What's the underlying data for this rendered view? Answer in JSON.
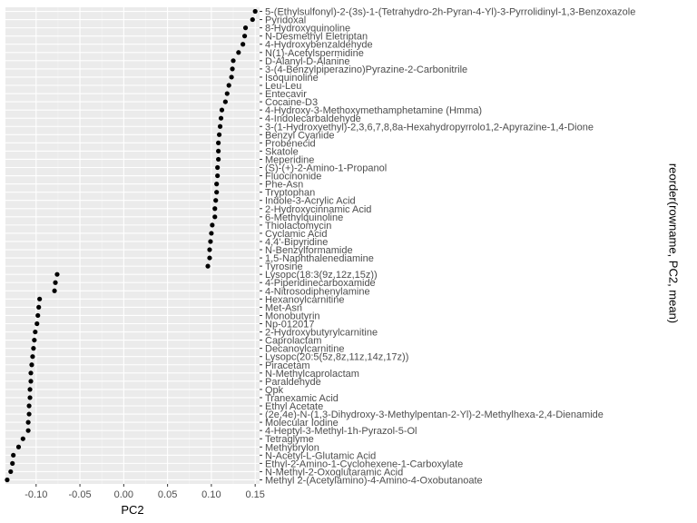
{
  "chart_data": {
    "type": "scatter",
    "xlabel": "PC2",
    "ylabel": "reorder(rowname, PC2, mean)",
    "xlim": [
      -0.135,
      0.155
    ],
    "x_ticks": [
      "-0.10",
      "-0.05",
      "0.00",
      "0.05",
      "0.10",
      "0.15"
    ],
    "x_tick_values": [
      -0.1,
      -0.05,
      0.0,
      0.05,
      0.1,
      0.15
    ],
    "grid": true,
    "legend": "none",
    "colors": {
      "panel": "#ebebeb",
      "grid_major": "#ffffff",
      "point": "#000000",
      "tick_text": "#4d4d4d"
    },
    "points": [
      {
        "label": "5-(Ethylsulfonyl)-2-(3s)-1-(Tetrahydro-2h-Pyran-4-Yl)-3-Pyrrolidinyl-1,3-Benzoxazole",
        "x": 0.15
      },
      {
        "label": "Pyridoxal",
        "x": 0.147
      },
      {
        "label": "8-Hydroxyquinoline",
        "x": 0.139
      },
      {
        "label": "N-Desmethyl Eletriptan",
        "x": 0.138
      },
      {
        "label": "4-Hydroxybenzaldehyde",
        "x": 0.136
      },
      {
        "label": "N(1)-Acetylspermidine",
        "x": 0.131
      },
      {
        "label": "D-Alanyl-D-Alanine",
        "x": 0.125
      },
      {
        "label": "3-(4-Benzylpiperazino)Pyrazine-2-Carbonitrile",
        "x": 0.124
      },
      {
        "label": "Isoquinoline",
        "x": 0.123
      },
      {
        "label": "Leu-Leu",
        "x": 0.12
      },
      {
        "label": "Entecavir",
        "x": 0.118
      },
      {
        "label": "Cocaine-D3",
        "x": 0.116
      },
      {
        "label": "4-Hydroxy-3-Methoxymethamphetamine (Hmma)",
        "x": 0.112
      },
      {
        "label": "4-Indolecarbaldehyde",
        "x": 0.111
      },
      {
        "label": "3-(1-Hydroxyethyl)-2,3,6,7,8,8a-Hexahydropyrrolo1,2-Apyrazine-1,4-Dione",
        "x": 0.11
      },
      {
        "label": "Benzyl Cyanide",
        "x": 0.109
      },
      {
        "label": "Probenecid",
        "x": 0.108
      },
      {
        "label": "Skatole",
        "x": 0.108
      },
      {
        "label": "Meperidine",
        "x": 0.108
      },
      {
        "label": "(S)-(+)-2-Amino-1-Propanol",
        "x": 0.107
      },
      {
        "label": "Fluocinonide",
        "x": 0.107
      },
      {
        "label": "Phe-Asn",
        "x": 0.106
      },
      {
        "label": "Tryptophan",
        "x": 0.106
      },
      {
        "label": "Indole-3-Acrylic Acid",
        "x": 0.105
      },
      {
        "label": "2-Hydroxycinnamic Acid",
        "x": 0.104
      },
      {
        "label": "6-Methylquinoline",
        "x": 0.104
      },
      {
        "label": "Thiolactomycin",
        "x": 0.101
      },
      {
        "label": "Cyclamic Acid",
        "x": 0.1
      },
      {
        "label": "4,4'-Bipyridine",
        "x": 0.099
      },
      {
        "label": "N-Benzylformamide",
        "x": 0.098
      },
      {
        "label": "1,5-Naphthalenediamine",
        "x": 0.098
      },
      {
        "label": "Tyrosine",
        "x": 0.096
      },
      {
        "label": "Lysopc(18:3(9z,12z,15z))",
        "x": -0.076
      },
      {
        "label": "4-Piperidinecarboxamide",
        "x": -0.078
      },
      {
        "label": "4-Nitrosodiphenylamine",
        "x": -0.079
      },
      {
        "label": "Hexanoylcarnitine",
        "x": -0.096
      },
      {
        "label": "Met-Asn",
        "x": -0.097
      },
      {
        "label": "Monobutyrin",
        "x": -0.098
      },
      {
        "label": "Np-012017",
        "x": -0.099
      },
      {
        "label": "2-Hydroxybutyrylcarnitine",
        "x": -0.101
      },
      {
        "label": "Caprolactam",
        "x": -0.102
      },
      {
        "label": "Decanoylcarnitine",
        "x": -0.103
      },
      {
        "label": "Lysopc(20:5(5z,8z,11z,14z,17z))",
        "x": -0.104
      },
      {
        "label": "Piracetam",
        "x": -0.105
      },
      {
        "label": "N-Methylcaprolactam",
        "x": -0.106
      },
      {
        "label": "Paraldehyde",
        "x": -0.106
      },
      {
        "label": "Qpk",
        "x": -0.107
      },
      {
        "label": "Tranexamic Acid",
        "x": -0.107
      },
      {
        "label": "Ethyl Acetate",
        "x": -0.108
      },
      {
        "label": "(2e,4e)-N-(1,3-Dihydroxy-3-Methylpentan-2-Yl)-2-Methylhexa-2,4-Dienamide",
        "x": -0.108
      },
      {
        "label": "Molecular Iodine",
        "x": -0.109
      },
      {
        "label": "4-Heptyl-3-Methyl-1h-Pyrazol-5-Ol",
        "x": -0.109
      },
      {
        "label": "Tetraglyme",
        "x": -0.115
      },
      {
        "label": "Methybrylon",
        "x": -0.12
      },
      {
        "label": "N-Acetyl-L-Glutamic Acid",
        "x": -0.126
      },
      {
        "label": "Ethyl-2-Amino-1-Cyclohexene-1-Carboxylate",
        "x": -0.127
      },
      {
        "label": "N-Methyl-2-Oxoglutaramic Acid",
        "x": -0.129
      },
      {
        "label": "Methyl 2-(Acetylamino)-4-Amino-4-Oxobutanoate",
        "x": -0.133
      }
    ]
  }
}
